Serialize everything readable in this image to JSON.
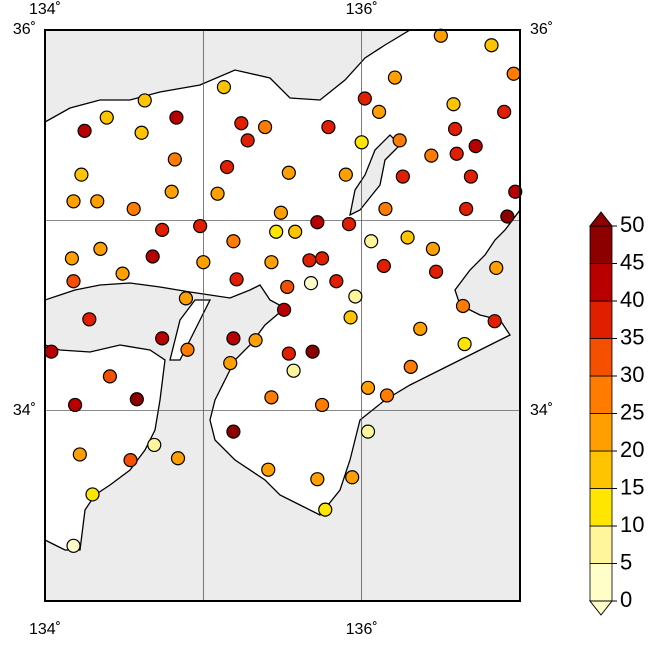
{
  "chart_data": {
    "type": "scatter",
    "xlim": [
      134,
      137
    ],
    "ylim": [
      33,
      36
    ],
    "xticks": [
      {
        "value": 134,
        "label": "134˚"
      },
      {
        "value": 135,
        "label": null
      },
      {
        "value": 136,
        "label": "136˚"
      }
    ],
    "yticks": [
      {
        "value": 34,
        "label": "34˚"
      },
      {
        "value": 35,
        "label": null
      },
      {
        "value": 36,
        "label": "36˚"
      }
    ],
    "grid": true,
    "x": [
      136.5,
      136.82,
      136.96,
      136.21,
      136.58,
      136.9,
      136.02,
      136.11,
      135.13,
      134.63,
      134.39,
      134.83,
      134.25,
      134.61,
      135.24,
      135.39,
      135.79,
      135.28,
      136.24,
      136.59,
      136.72,
      136.6,
      136.0,
      136.44,
      134.82,
      135.15,
      135.54,
      135.9,
      136.26,
      134.23,
      136.69,
      136.97,
      134.18,
      134.33,
      134.8,
      135.09,
      134.56,
      135.49,
      136.15,
      136.66,
      136.92,
      135.72,
      135.92,
      134.98,
      134.74,
      135.46,
      134.35,
      135.19,
      135.58,
      136.06,
      136.29,
      136.45,
      134.68,
      135.0,
      135.43,
      135.67,
      135.75,
      134.17,
      135.84,
      136.85,
      136.14,
      136.47,
      134.18,
      134.49,
      135.21,
      135.53,
      135.68,
      135.96,
      136.64,
      134.89,
      134.28,
      135.51,
      135.93,
      136.37,
      136.84,
      134.04,
      134.74,
      135.19,
      134.9,
      135.33,
      135.54,
      135.69,
      136.65,
      134.41,
      135.17,
      135.57,
      134.58,
      136.31,
      136.04,
      135.43,
      134.19,
      135.75,
      136.16,
      135.19,
      134.22,
      134.54,
      134.69,
      136.04,
      134.84,
      135.41,
      135.72,
      135.94,
      134.3,
      135.77,
      134.18
    ],
    "y": [
      35.97,
      35.92,
      35.77,
      35.75,
      35.61,
      35.57,
      35.64,
      35.57,
      35.7,
      35.63,
      35.54,
      35.54,
      35.47,
      35.46,
      35.51,
      35.49,
      35.49,
      35.42,
      35.42,
      35.48,
      35.39,
      35.35,
      35.41,
      35.34,
      35.32,
      35.28,
      35.25,
      35.24,
      35.23,
      35.24,
      35.23,
      35.15,
      35.1,
      35.1,
      35.15,
      35.14,
      35.06,
      35.04,
      35.06,
      35.06,
      35.02,
      34.99,
      34.98,
      34.97,
      34.95,
      34.94,
      34.85,
      34.89,
      34.94,
      34.89,
      34.91,
      34.85,
      34.81,
      34.78,
      34.78,
      34.79,
      34.8,
      34.8,
      34.68,
      34.75,
      34.76,
      34.73,
      34.68,
      34.72,
      34.69,
      34.65,
      34.67,
      34.6,
      34.55,
      34.59,
      34.48,
      34.53,
      34.49,
      34.43,
      34.47,
      34.31,
      34.38,
      34.38,
      34.32,
      34.37,
      34.3,
      34.31,
      34.35,
      34.18,
      34.25,
      34.21,
      34.06,
      34.23,
      34.12,
      34.07,
      34.03,
      34.03,
      34.08,
      33.89,
      33.77,
      33.74,
      33.82,
      33.89,
      33.75,
      33.69,
      33.64,
      33.65,
      33.56,
      33.48,
      33.29
    ],
    "values": [
      22,
      17,
      27,
      22,
      17,
      37,
      37,
      22,
      17,
      17,
      17,
      42,
      42,
      17,
      37,
      27,
      37,
      37,
      27,
      37,
      42,
      37,
      12,
      27,
      27,
      37,
      22,
      22,
      37,
      17,
      37,
      42,
      22,
      22,
      22,
      22,
      27,
      22,
      27,
      37,
      47,
      42,
      37,
      37,
      37,
      12,
      22,
      27,
      17,
      7,
      17,
      22,
      42,
      22,
      22,
      37,
      37,
      22,
      37,
      22,
      37,
      37,
      32,
      22,
      37,
      32,
      3,
      7,
      27,
      22,
      37,
      42,
      17,
      22,
      37,
      42,
      42,
      42,
      27,
      22,
      37,
      47,
      12,
      32,
      22,
      7,
      47,
      27,
      22,
      27,
      42,
      27,
      27,
      47,
      22,
      32,
      7,
      7,
      22,
      22,
      22,
      22,
      12,
      12,
      3
    ],
    "colorbar": {
      "lim": [
        0,
        50
      ],
      "ticks": [
        0,
        5,
        10,
        15,
        20,
        25,
        30,
        35,
        40,
        45,
        50
      ],
      "colors": [
        "#fffdc8",
        "#fff59a",
        "#ffe600",
        "#ffc400",
        "#ffa000",
        "#ff7c00",
        "#f55000",
        "#e01e00",
        "#b80000",
        "#8c0000"
      ],
      "under_color": "#fffdc8",
      "over_color": "#8c0000"
    }
  }
}
